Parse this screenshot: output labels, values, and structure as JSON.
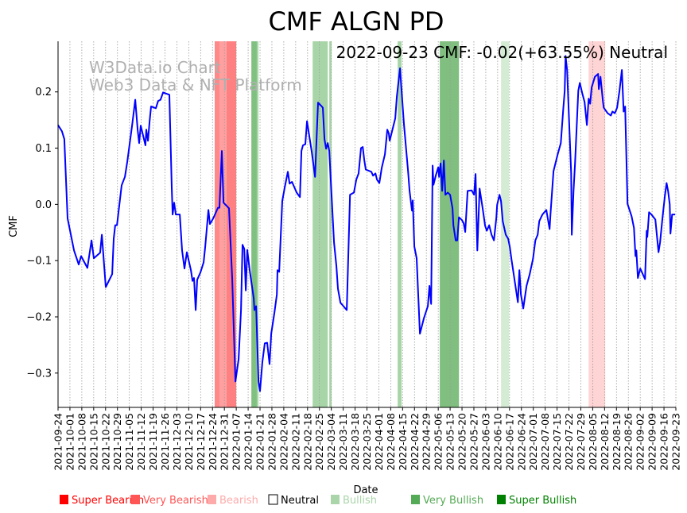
{
  "chart_data": {
    "type": "line",
    "title": "CMF ALGN PD",
    "xlabel": "Date",
    "ylabel": "CMF",
    "start_date": "2021-09-24",
    "x_unit": "days since 2021-09-24",
    "xlim": [
      0,
      364
    ],
    "ylim": [
      -0.361,
      0.29
    ],
    "grid": "vertical dotted at each x tick",
    "watermark": [
      "W3Data.io Chart",
      "Web3 Data & NFT Platform"
    ],
    "annotation": "2022-09-23 CMF: -0.02(+63.55%) Neutral",
    "yticks": [
      {
        "value": 0.2,
        "label": "0.2"
      },
      {
        "value": 0.1,
        "label": "0.1"
      },
      {
        "value": 0.0,
        "label": "0.0"
      },
      {
        "value": -0.1,
        "label": "−0.1"
      },
      {
        "value": -0.2,
        "label": "−0.2"
      },
      {
        "value": -0.3,
        "label": "−0.3"
      }
    ],
    "xticks": [
      "2021-09-24",
      "2021-10-01",
      "2021-10-08",
      "2021-10-15",
      "2021-10-22",
      "2021-10-29",
      "2021-11-05",
      "2021-11-12",
      "2021-11-19",
      "2021-11-26",
      "2021-12-03",
      "2021-12-10",
      "2021-12-17",
      "2021-12-24",
      "2021-12-31",
      "2022-01-07",
      "2022-01-14",
      "2022-01-21",
      "2022-01-28",
      "2022-02-04",
      "2022-02-11",
      "2022-02-18",
      "2022-02-25",
      "2022-03-04",
      "2022-03-11",
      "2022-03-18",
      "2022-03-25",
      "2022-04-01",
      "2022-04-08",
      "2022-04-15",
      "2022-04-22",
      "2022-04-29",
      "2022-05-06",
      "2022-05-13",
      "2022-05-20",
      "2022-05-27",
      "2022-06-03",
      "2022-06-10",
      "2022-06-17",
      "2022-06-24",
      "2022-07-01",
      "2022-07-08",
      "2022-07-15",
      "2022-07-22",
      "2022-07-29",
      "2022-08-05",
      "2022-08-12",
      "2022-08-19",
      "2022-08-26",
      "2022-09-02",
      "2022-09-09",
      "2022-09-16",
      "2022-09-23"
    ],
    "series": [
      {
        "name": "CMF",
        "color": "#0000ff",
        "points": [
          [
            0,
            0.141
          ],
          [
            2.3,
            0.13
          ],
          [
            3.7,
            0.116
          ],
          [
            5.6,
            -0.025
          ],
          [
            9.4,
            -0.082
          ],
          [
            12.2,
            -0.107
          ],
          [
            13.6,
            -0.092
          ],
          [
            17.3,
            -0.113
          ],
          [
            19.7,
            -0.064
          ],
          [
            21.1,
            -0.096
          ],
          [
            24.8,
            -0.086
          ],
          [
            25.8,
            -0.054
          ],
          [
            28.1,
            -0.147
          ],
          [
            31.9,
            -0.124
          ],
          [
            32.8,
            -0.061
          ],
          [
            33.7,
            -0.037
          ],
          [
            34.7,
            -0.037
          ],
          [
            37.5,
            0.034
          ],
          [
            39.4,
            0.049
          ],
          [
            40.8,
            0.076
          ],
          [
            43.6,
            0.14
          ],
          [
            45.5,
            0.186
          ],
          [
            46.9,
            0.133
          ],
          [
            47.8,
            0.109
          ],
          [
            48.7,
            0.14
          ],
          [
            51.5,
            0.105
          ],
          [
            52.0,
            0.133
          ],
          [
            53.0,
            0.113
          ],
          [
            53.9,
            0.147
          ],
          [
            54.8,
            0.174
          ],
          [
            57.6,
            0.171
          ],
          [
            59.0,
            0.184
          ],
          [
            60.4,
            0.186
          ],
          [
            61.9,
            0.199
          ],
          [
            65.6,
            0.195
          ],
          [
            67.0,
            0.03
          ],
          [
            67.5,
            -0.018
          ],
          [
            68.4,
            0.003
          ],
          [
            69.4,
            -0.018
          ],
          [
            71.7,
            -0.018
          ],
          [
            73.1,
            -0.082
          ],
          [
            74.5,
            -0.114
          ],
          [
            75.9,
            -0.085
          ],
          [
            78.3,
            -0.117
          ],
          [
            79.2,
            -0.136
          ],
          [
            80.1,
            -0.131
          ],
          [
            81.1,
            -0.188
          ],
          [
            82.0,
            -0.134
          ],
          [
            83.9,
            -0.121
          ],
          [
            85.8,
            -0.103
          ],
          [
            86.7,
            -0.075
          ],
          [
            88.6,
            -0.01
          ],
          [
            89.5,
            -0.035
          ],
          [
            91.4,
            -0.025
          ],
          [
            94.2,
            -0.006
          ],
          [
            95.1,
            -0.006
          ],
          [
            96.5,
            0.095
          ],
          [
            97.5,
            0.003
          ],
          [
            100.7,
            -0.007
          ],
          [
            102.6,
            -0.131
          ],
          [
            104.5,
            -0.315
          ],
          [
            106.4,
            -0.275
          ],
          [
            107.8,
            -0.188
          ],
          [
            108.7,
            -0.072
          ],
          [
            109.7,
            -0.079
          ],
          [
            110.6,
            -0.153
          ],
          [
            111.5,
            -0.081
          ],
          [
            112.9,
            -0.117
          ],
          [
            115.3,
            -0.167
          ],
          [
            115.7,
            -0.188
          ],
          [
            116.7,
            -0.181
          ],
          [
            118.1,
            -0.315
          ],
          [
            119.0,
            -0.332
          ],
          [
            120.4,
            -0.28
          ],
          [
            121.8,
            -0.247
          ],
          [
            123.2,
            -0.246
          ],
          [
            124.6,
            -0.284
          ],
          [
            125.6,
            -0.23
          ],
          [
            127.5,
            -0.192
          ],
          [
            128.9,
            -0.16
          ],
          [
            129.3,
            -0.117
          ],
          [
            130.3,
            -0.12
          ],
          [
            132.1,
            0.006
          ],
          [
            133.6,
            0.031
          ],
          [
            135.4,
            0.058
          ],
          [
            136.4,
            0.037
          ],
          [
            137.8,
            0.04
          ],
          [
            140.6,
            0.021
          ],
          [
            142.5,
            0.013
          ],
          [
            143.4,
            0.095
          ],
          [
            144.3,
            0.105
          ],
          [
            145.7,
            0.107
          ],
          [
            146.7,
            0.148
          ],
          [
            149.5,
            0.093
          ],
          [
            151.4,
            0.049
          ],
          [
            153.2,
            0.181
          ],
          [
            155.1,
            0.175
          ],
          [
            156.0,
            0.172
          ],
          [
            157.0,
            0.116
          ],
          [
            157.9,
            0.099
          ],
          [
            158.9,
            0.109
          ],
          [
            159.8,
            0.095
          ],
          [
            162.6,
            -0.068
          ],
          [
            164.0,
            -0.11
          ],
          [
            164.9,
            -0.15
          ],
          [
            166.4,
            -0.175
          ],
          [
            167.3,
            -0.178
          ],
          [
            170.1,
            -0.188
          ],
          [
            172.0,
            0.017
          ],
          [
            174.3,
            0.021
          ],
          [
            175.7,
            0.044
          ],
          [
            177.1,
            0.055
          ],
          [
            178.5,
            0.1
          ],
          [
            179.5,
            0.102
          ],
          [
            180.4,
            0.079
          ],
          [
            181.3,
            0.062
          ],
          [
            184.6,
            0.058
          ],
          [
            185.6,
            0.051
          ],
          [
            187.0,
            0.055
          ],
          [
            187.9,
            0.044
          ],
          [
            189.3,
            0.038
          ],
          [
            190.7,
            0.065
          ],
          [
            192.6,
            0.089
          ],
          [
            194.0,
            0.133
          ],
          [
            194.9,
            0.126
          ],
          [
            195.4,
            0.113
          ],
          [
            198.7,
            0.153
          ],
          [
            199.6,
            0.192
          ],
          [
            201.5,
            0.242
          ],
          [
            203.8,
            0.143
          ],
          [
            206.2,
            0.059
          ],
          [
            207.1,
            0.024
          ],
          [
            208.5,
            -0.011
          ],
          [
            209.0,
            0.007
          ],
          [
            209.9,
            -0.075
          ],
          [
            211.3,
            -0.096
          ],
          [
            213.2,
            -0.23
          ],
          [
            215.6,
            -0.202
          ],
          [
            217.9,
            -0.181
          ],
          [
            218.8,
            -0.145
          ],
          [
            219.8,
            -0.177
          ],
          [
            220.7,
            0.069
          ],
          [
            221.2,
            0.035
          ],
          [
            222.6,
            0.052
          ],
          [
            224.0,
            0.066
          ],
          [
            224.5,
            0.049
          ],
          [
            225.4,
            0.073
          ],
          [
            226.3,
            0.024
          ],
          [
            227.3,
            0.078
          ],
          [
            228.2,
            0.017
          ],
          [
            229.6,
            0.021
          ],
          [
            231.0,
            0.017
          ],
          [
            232.4,
            -0.007
          ],
          [
            232.9,
            -0.037
          ],
          [
            234.3,
            -0.064
          ],
          [
            235.2,
            -0.064
          ],
          [
            236.2,
            -0.023
          ],
          [
            238.0,
            -0.028
          ],
          [
            239.0,
            -0.034
          ],
          [
            239.9,
            -0.049
          ],
          [
            241.3,
            0.024
          ],
          [
            243.7,
            0.025
          ],
          [
            245.1,
            0.017
          ],
          [
            246.0,
            0.054
          ],
          [
            247.0,
            -0.082
          ],
          [
            248.4,
            0.028
          ],
          [
            250.2,
            -0.008
          ],
          [
            251.6,
            -0.038
          ],
          [
            252.6,
            -0.047
          ],
          [
            254.0,
            -0.037
          ],
          [
            255.4,
            -0.054
          ],
          [
            256.8,
            -0.064
          ],
          [
            258.2,
            -0.024
          ],
          [
            258.7,
            -0.001
          ],
          [
            260.1,
            0.017
          ],
          [
            261.0,
            0.006
          ],
          [
            262.0,
            -0.03
          ],
          [
            263.8,
            -0.054
          ],
          [
            265.2,
            -0.061
          ],
          [
            266.2,
            -0.076
          ],
          [
            267.1,
            -0.097
          ],
          [
            270.9,
            -0.174
          ],
          [
            271.8,
            -0.117
          ],
          [
            272.7,
            -0.16
          ],
          [
            274.1,
            -0.185
          ],
          [
            276.0,
            -0.145
          ],
          [
            277.9,
            -0.124
          ],
          [
            279.8,
            -0.097
          ],
          [
            281.2,
            -0.064
          ],
          [
            282.6,
            -0.054
          ],
          [
            283.5,
            -0.03
          ],
          [
            285.4,
            -0.018
          ],
          [
            287.7,
            -0.01
          ],
          [
            289.6,
            -0.044
          ],
          [
            290.1,
            -0.018
          ],
          [
            291.9,
            0.059
          ],
          [
            294.3,
            0.088
          ],
          [
            296.2,
            0.109
          ],
          [
            297.6,
            0.168
          ],
          [
            298.5,
            0.202
          ],
          [
            299.0,
            0.264
          ],
          [
            299.9,
            0.239
          ],
          [
            302.3,
            0.056
          ],
          [
            302.7,
            -0.054
          ],
          [
            303.7,
            0.024
          ],
          [
            304.6,
            0.073
          ],
          [
            306.5,
            0.202
          ],
          [
            307.4,
            0.216
          ],
          [
            308.8,
            0.198
          ],
          [
            310.2,
            0.182
          ],
          [
            311.6,
            0.141
          ],
          [
            312.6,
            0.188
          ],
          [
            313.5,
            0.179
          ],
          [
            314.4,
            0.208
          ],
          [
            316.3,
            0.227
          ],
          [
            318.2,
            0.232
          ],
          [
            318.6,
            0.205
          ],
          [
            319.6,
            0.227
          ],
          [
            321.0,
            0.184
          ],
          [
            321.5,
            0.172
          ],
          [
            323.8,
            0.162
          ],
          [
            325.7,
            0.158
          ],
          [
            326.6,
            0.165
          ],
          [
            328.0,
            0.162
          ],
          [
            329.4,
            0.172
          ],
          [
            330.8,
            0.202
          ],
          [
            332.2,
            0.239
          ],
          [
            333.2,
            0.165
          ],
          [
            334.1,
            0.174
          ],
          [
            335.5,
            0.001
          ],
          [
            337.9,
            -0.021
          ],
          [
            339.3,
            -0.042
          ],
          [
            340.2,
            -0.092
          ],
          [
            340.7,
            -0.082
          ],
          [
            341.6,
            -0.131
          ],
          [
            343.0,
            -0.114
          ],
          [
            345.8,
            -0.133
          ],
          [
            346.8,
            -0.047
          ],
          [
            347.2,
            -0.058
          ],
          [
            348.2,
            -0.014
          ],
          [
            349.6,
            -0.018
          ],
          [
            351.9,
            -0.027
          ],
          [
            353.8,
            -0.085
          ],
          [
            354.7,
            -0.068
          ],
          [
            356.1,
            -0.025
          ],
          [
            357.5,
            0.014
          ],
          [
            358.5,
            0.038
          ],
          [
            359.4,
            0.024
          ],
          [
            360.4,
            0.0
          ],
          [
            360.8,
            -0.052
          ],
          [
            361.8,
            -0.018
          ],
          [
            363.6,
            -0.018
          ]
        ]
      }
    ],
    "bands": [
      {
        "category": "Very Bearish",
        "start": 92.3,
        "end": 95.1,
        "color": "#ff8888"
      },
      {
        "category": "Bearish",
        "start": 95.1,
        "end": 99.3,
        "color": "#ffa0a0"
      },
      {
        "category": "Very Bearish",
        "start": 99.3,
        "end": 105.0,
        "color": "#ff8080"
      },
      {
        "category": "Very Bullish",
        "start": 113.9,
        "end": 117.1,
        "color": "#80c080"
      },
      {
        "category": "Bullish",
        "start": 117.1,
        "end": 118.1,
        "color": "#a8d8a8"
      },
      {
        "category": "Bullish",
        "start": 150.0,
        "end": 158.9,
        "color": "#a8d5a8"
      },
      {
        "category": "Bullish",
        "start": 159.8,
        "end": 161.2,
        "color": "#a8d5a8"
      },
      {
        "category": "Bullish",
        "start": 200.1,
        "end": 202.4,
        "color": "#a8d5a8"
      },
      {
        "category": "Very Bullish",
        "start": 224.9,
        "end": 236.2,
        "color": "#80bf80"
      },
      {
        "category": "Bullish",
        "start": 261.0,
        "end": 265.7,
        "color": "#d4ebd4"
      },
      {
        "category": "Bearish",
        "start": 312.6,
        "end": 322.4,
        "color": "#ffd4d4"
      }
    ],
    "legend": {
      "placement": "bottom",
      "items": [
        {
          "label": "Super Bearish",
          "color": "#ff0000",
          "text_color": "#ff0000"
        },
        {
          "label": "Very Bearish",
          "color": "#ff5555",
          "text_color": "#ff5555"
        },
        {
          "label": "Bearish",
          "color": "#ffaaaa",
          "text_color": "#ffaaaa"
        },
        {
          "label": "Neutral",
          "color": "#ffffff",
          "text_color": "#000000"
        },
        {
          "label": "Bullish",
          "color": "#aad5aa",
          "text_color": "#aad5aa"
        },
        {
          "label": "Very Bullish",
          "color": "#55aa55",
          "text_color": "#55aa55"
        },
        {
          "label": "Super Bullish",
          "color": "#008000",
          "text_color": "#008000"
        }
      ]
    }
  }
}
